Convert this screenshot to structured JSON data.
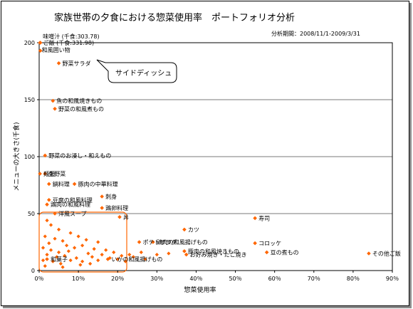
{
  "chart_data": {
    "type": "scatter",
    "title": "家族世帯の夕食における惣菜使用率　ポートフォリオ分析",
    "period": "分析期間：2008/11/1-2009/3/31",
    "xlabel": "惣菜使用率",
    "ylabel": "メニューの大きさ(千食)",
    "xlim": [
      0,
      90
    ],
    "ylim": [
      0,
      200
    ],
    "x_ticks": [
      "0％",
      "10％",
      "20％",
      "30％",
      "40％",
      "50％",
      "60％",
      "70％",
      "80％",
      "90％"
    ],
    "y_ticks": [
      "0",
      "50",
      "100",
      "150",
      "200"
    ],
    "grid": "horizontal",
    "marker_color": "#ff6600",
    "callout": "サイドディッシュ",
    "labeled_points": [
      {
        "label": "味噌汁 (千食:303.78)",
        "x": 0.2,
        "y": 200
      },
      {
        "label": "ご飯 (千食:331.98)",
        "x": 0.3,
        "y": 200
      },
      {
        "label": "和風囲い物",
        "x": 0.3,
        "y": 193
      },
      {
        "label": "野菜サラダ",
        "x": 5,
        "y": 182
      },
      {
        "label": "魚の和風焼きもの",
        "x": 3.5,
        "y": 149
      },
      {
        "label": "野菜の和風煮もの",
        "x": 4,
        "y": 142
      },
      {
        "label": "野菜のお浸し・和えもの",
        "x": 1.5,
        "y": 101
      },
      {
        "label": "麺類",
        "x": 0.2,
        "y": 85
      },
      {
        "label": "生野菜",
        "x": 1.5,
        "y": 85
      },
      {
        "label": "鍋料理",
        "x": 2.5,
        "y": 76
      },
      {
        "label": "豚肉の中華料理",
        "x": 9,
        "y": 76
      },
      {
        "label": "刺身",
        "x": 16,
        "y": 65
      },
      {
        "label": "豆腐の和風料理",
        "x": 2.5,
        "y": 62
      },
      {
        "label": "鶏肉の和風料理",
        "x": 2,
        "y": 58
      },
      {
        "label": "鶏卵料理",
        "x": 16,
        "y": 55
      },
      {
        "label": "洋風スープ",
        "x": 4,
        "y": 50
      },
      {
        "label": "丼",
        "x": 20.5,
        "y": 47
      },
      {
        "label": "寿司",
        "x": 55,
        "y": 46
      },
      {
        "label": "カツ",
        "x": 37,
        "y": 36
      },
      {
        "label": "コロッケ",
        "x": 55,
        "y": 24
      },
      {
        "label": "ポテトサラダ",
        "x": 25.5,
        "y": 25
      },
      {
        "label": "鶏肉の和風揚げもの",
        "x": 29,
        "y": 25
      },
      {
        "label": "豚肉の和風焼きもの",
        "x": 37,
        "y": 17
      },
      {
        "label": "お好み焼き・たこ焼き",
        "x": 37.5,
        "y": 14
      },
      {
        "label": "豆の煮もの",
        "x": 58,
        "y": 16
      },
      {
        "label": "その他ご飯",
        "x": 84,
        "y": 15
      },
      {
        "label": "いかの和風揚げもの",
        "x": 17.5,
        "y": 10
      },
      {
        "label": "和菓子",
        "x": 2,
        "y": 10
      }
    ],
    "cluster_points": [
      {
        "x": 2,
        "y": 44
      },
      {
        "x": 3,
        "y": 40
      },
      {
        "x": 5,
        "y": 36
      },
      {
        "x": 8,
        "y": 33
      },
      {
        "x": 1.5,
        "y": 30
      },
      {
        "x": 4,
        "y": 28
      },
      {
        "x": 6,
        "y": 26
      },
      {
        "x": 10,
        "y": 30
      },
      {
        "x": 12,
        "y": 27
      },
      {
        "x": 15,
        "y": 25
      },
      {
        "x": 2.5,
        "y": 24
      },
      {
        "x": 7,
        "y": 22
      },
      {
        "x": 9,
        "y": 20
      },
      {
        "x": 11,
        "y": 22
      },
      {
        "x": 14,
        "y": 19
      },
      {
        "x": 17,
        "y": 18
      },
      {
        "x": 1,
        "y": 20
      },
      {
        "x": 3,
        "y": 18
      },
      {
        "x": 5,
        "y": 16
      },
      {
        "x": 7.5,
        "y": 17
      },
      {
        "x": 12.5,
        "y": 15
      },
      {
        "x": 16,
        "y": 14
      },
      {
        "x": 19,
        "y": 16
      },
      {
        "x": 21,
        "y": 13
      },
      {
        "x": 2,
        "y": 14
      },
      {
        "x": 4.5,
        "y": 12
      },
      {
        "x": 6.5,
        "y": 13
      },
      {
        "x": 9.5,
        "y": 11
      },
      {
        "x": 13.5,
        "y": 12
      },
      {
        "x": 18,
        "y": 11
      },
      {
        "x": 23,
        "y": 14
      },
      {
        "x": 1,
        "y": 9
      },
      {
        "x": 3.5,
        "y": 8
      },
      {
        "x": 8,
        "y": 9
      },
      {
        "x": 11,
        "y": 8
      },
      {
        "x": 15,
        "y": 9
      },
      {
        "x": 20,
        "y": 10
      },
      {
        "x": 24,
        "y": 12
      },
      {
        "x": 26,
        "y": 16
      },
      {
        "x": 30,
        "y": 14
      },
      {
        "x": 33,
        "y": 15
      },
      {
        "x": 5.5,
        "y": 6
      },
      {
        "x": 10.5,
        "y": 5
      },
      {
        "x": 13,
        "y": 6
      },
      {
        "x": 1.5,
        "y": 4
      },
      {
        "x": 6,
        "y": 3
      },
      {
        "x": 22,
        "y": 8
      },
      {
        "x": 27,
        "y": 10
      }
    ],
    "unreadable_labels": [
      "蒸焼鶏",
      "豚肉の和風料理",
      "炒めもの"
    ]
  }
}
